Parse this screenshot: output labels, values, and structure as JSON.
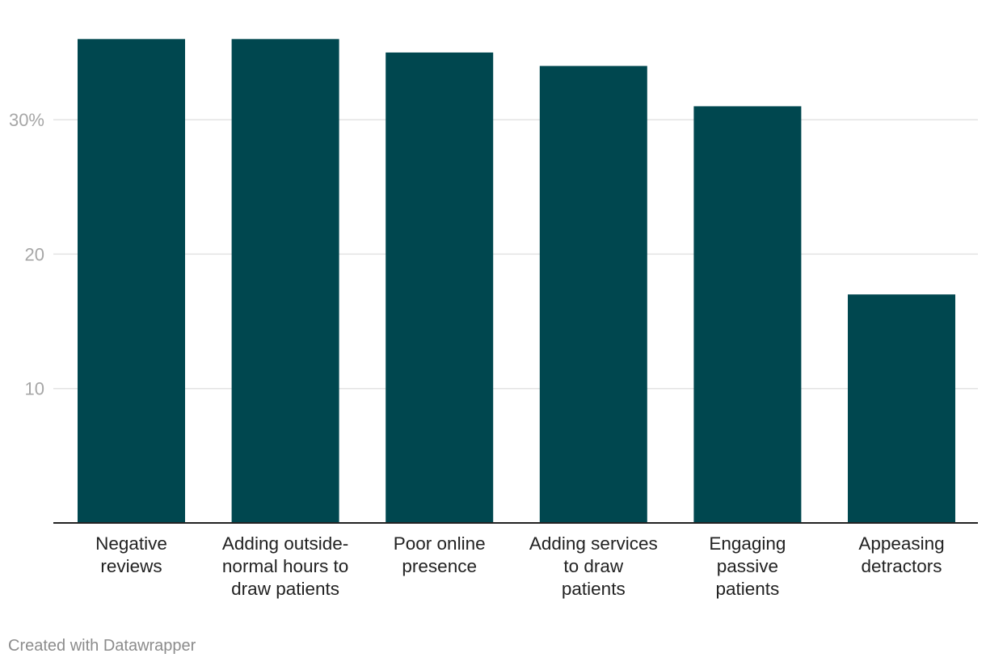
{
  "chart_data": {
    "type": "bar",
    "title": "",
    "xlabel": "",
    "ylabel": "",
    "categories": [
      [
        "Negative",
        "reviews"
      ],
      [
        "Adding outside-",
        "normal hours to",
        "draw patients"
      ],
      [
        "Poor online",
        "presence"
      ],
      [
        "Adding services",
        "to draw",
        "patients"
      ],
      [
        "Engaging",
        "passive",
        "patients"
      ],
      [
        "Appeasing",
        "detractors"
      ]
    ],
    "values": [
      36,
      36,
      35,
      34,
      31,
      17
    ],
    "ylim": [
      0,
      36
    ],
    "yticks": [
      {
        "value": 10,
        "label": "10"
      },
      {
        "value": 20,
        "label": "20"
      },
      {
        "value": 30,
        "label": "30%"
      }
    ],
    "grid": true,
    "bar_color": "#00474f"
  },
  "credit": "Created with Datawrapper"
}
